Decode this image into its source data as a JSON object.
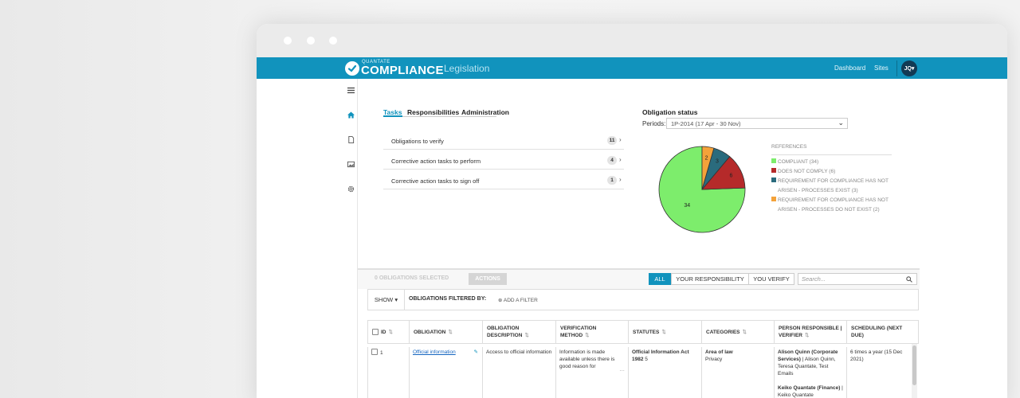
{
  "header": {
    "brand_small": "QUANTATE",
    "brand_big": "COMPLIANCE",
    "section": "Legislation",
    "nav": [
      "Dashboard",
      "Sites"
    ],
    "avatar": "JQ▾"
  },
  "tabs": [
    "Tasks",
    "Responsibilities",
    "Administration"
  ],
  "tasks": [
    {
      "label": "Obligations to verify",
      "count": "11"
    },
    {
      "label": "Corrective action tasks to perform",
      "count": "4"
    },
    {
      "label": "Corrective action tasks to sign off",
      "count": "1"
    }
  ],
  "obligation_status": {
    "title": "Obligation status",
    "periods_label": "Periods:",
    "period_value": "1P-2014 (17 Apr - 30 Nov)"
  },
  "chart_data": {
    "type": "pie",
    "labels": [
      "COMPLIANT",
      "DOES NOT COMPLY",
      "REQUIREMENT FOR COMPLIANCE HAS NOT ARISEN - PROCESSES EXIST",
      "REQUIREMENT FOR COMPLIANCE HAS NOT ARISEN - PROCESSES DO NOT EXIST"
    ],
    "values": [
      34,
      6,
      3,
      2
    ],
    "colors": [
      "#7ded6c",
      "#b52a2a",
      "#2a6b7d",
      "#f4a23a"
    ],
    "legend_title": "REFERENCES",
    "legend": [
      {
        "first": "COMPLIANT (34)",
        "rest": ""
      },
      {
        "first": "DOES NOT COMPLY (6)",
        "rest": ""
      },
      {
        "first": "REQUIREMENT FOR COMPLIANCE HAS NOT",
        "rest": "ARISEN - PROCESSES EXIST (3)"
      },
      {
        "first": "REQUIREMENT FOR COMPLIANCE HAS NOT",
        "rest": "ARISEN - PROCESSES DO NOT EXIST (2)"
      }
    ]
  },
  "toolbar": {
    "selected": "0 OBLIGATIONS SELECTED",
    "actions": "ACTIONS",
    "filters": [
      "ALL",
      "YOUR RESPONSIBILITY",
      "YOU VERIFY"
    ],
    "search_placeholder": "Search..."
  },
  "filterbar": {
    "show": "SHOW ▾",
    "filtered_by": "OBLIGATIONS FILTERED BY:",
    "add_filter": "ADD A FILTER"
  },
  "table": {
    "columns": [
      "ID",
      "OBLIGATION",
      "OBLIGATION DESCRIPTION",
      "VERIFICATION METHOD",
      "STATUTES",
      "CATEGORIES",
      "PERSON RESPONSIBLE | VERIFIER",
      "SCHEDULING (NEXT DUE)"
    ],
    "row": {
      "id": "1",
      "obligation": "Official information",
      "description": "Access to official information",
      "verification": "Information is made available unless there is good reason for",
      "statute_bold": "Official Information Act 1982",
      "statute_rest": " 5",
      "category_bold": "Area of law",
      "category_rest": "Privacy",
      "person1_bold": "Alison Quinn (Corporate Services)",
      "person1_rest": " | Alison Quinn, Teresa Quantate, Test Emails",
      "person2_bold": "Keiko Quantate (Finance)",
      "person2_rest": " | Keiko Quantate",
      "scheduling": "6 times a year (15 Dec 2021)"
    }
  }
}
